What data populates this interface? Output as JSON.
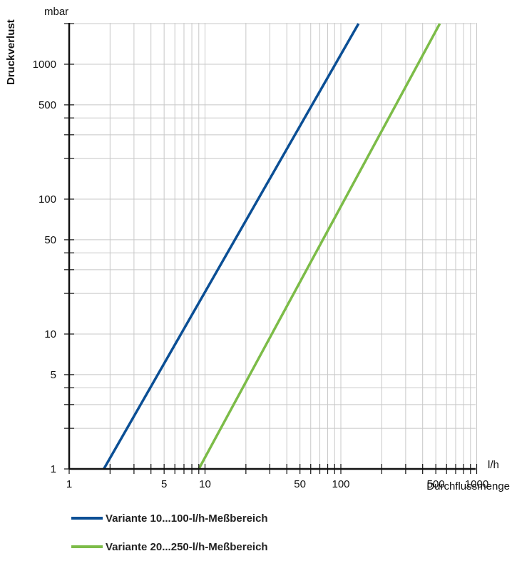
{
  "chart_data": {
    "type": "line",
    "x_scale": "log",
    "y_scale": "log",
    "xlabel": "Durchflussmenge",
    "x_unit": "l/h",
    "ylabel": "Druckverlust",
    "y_unit": "mbar",
    "xlim": [
      1,
      1000
    ],
    "ylim": [
      1,
      2000
    ],
    "x_ticks": [
      {
        "value": 1,
        "label": "1"
      },
      {
        "value": 5,
        "label": "5"
      },
      {
        "value": 10,
        "label": "10"
      },
      {
        "value": 50,
        "label": "50"
      },
      {
        "value": 100,
        "label": "100"
      },
      {
        "value": 500,
        "label": "500"
      },
      {
        "value": 1000,
        "label": "1000"
      }
    ],
    "y_ticks": [
      {
        "value": 1,
        "label": "1"
      },
      {
        "value": 5,
        "label": "5"
      },
      {
        "value": 10,
        "label": "10"
      },
      {
        "value": 50,
        "label": "50"
      },
      {
        "value": 100,
        "label": "100"
      },
      {
        "value": 500,
        "label": "500"
      },
      {
        "value": 1000,
        "label": "1000"
      }
    ],
    "grid": true,
    "legend_position": "bottom",
    "series": [
      {
        "name": "Variante 10...100-l/h-Meßbereich",
        "color": "#0b4f95",
        "points": [
          [
            1.8,
            1
          ],
          [
            135,
            2000
          ]
        ]
      },
      {
        "name": "Variante 20...250-l/h-Meßbereich",
        "color": "#7cbc48",
        "points": [
          [
            9,
            1
          ],
          [
            535,
            2000
          ]
        ]
      }
    ]
  }
}
